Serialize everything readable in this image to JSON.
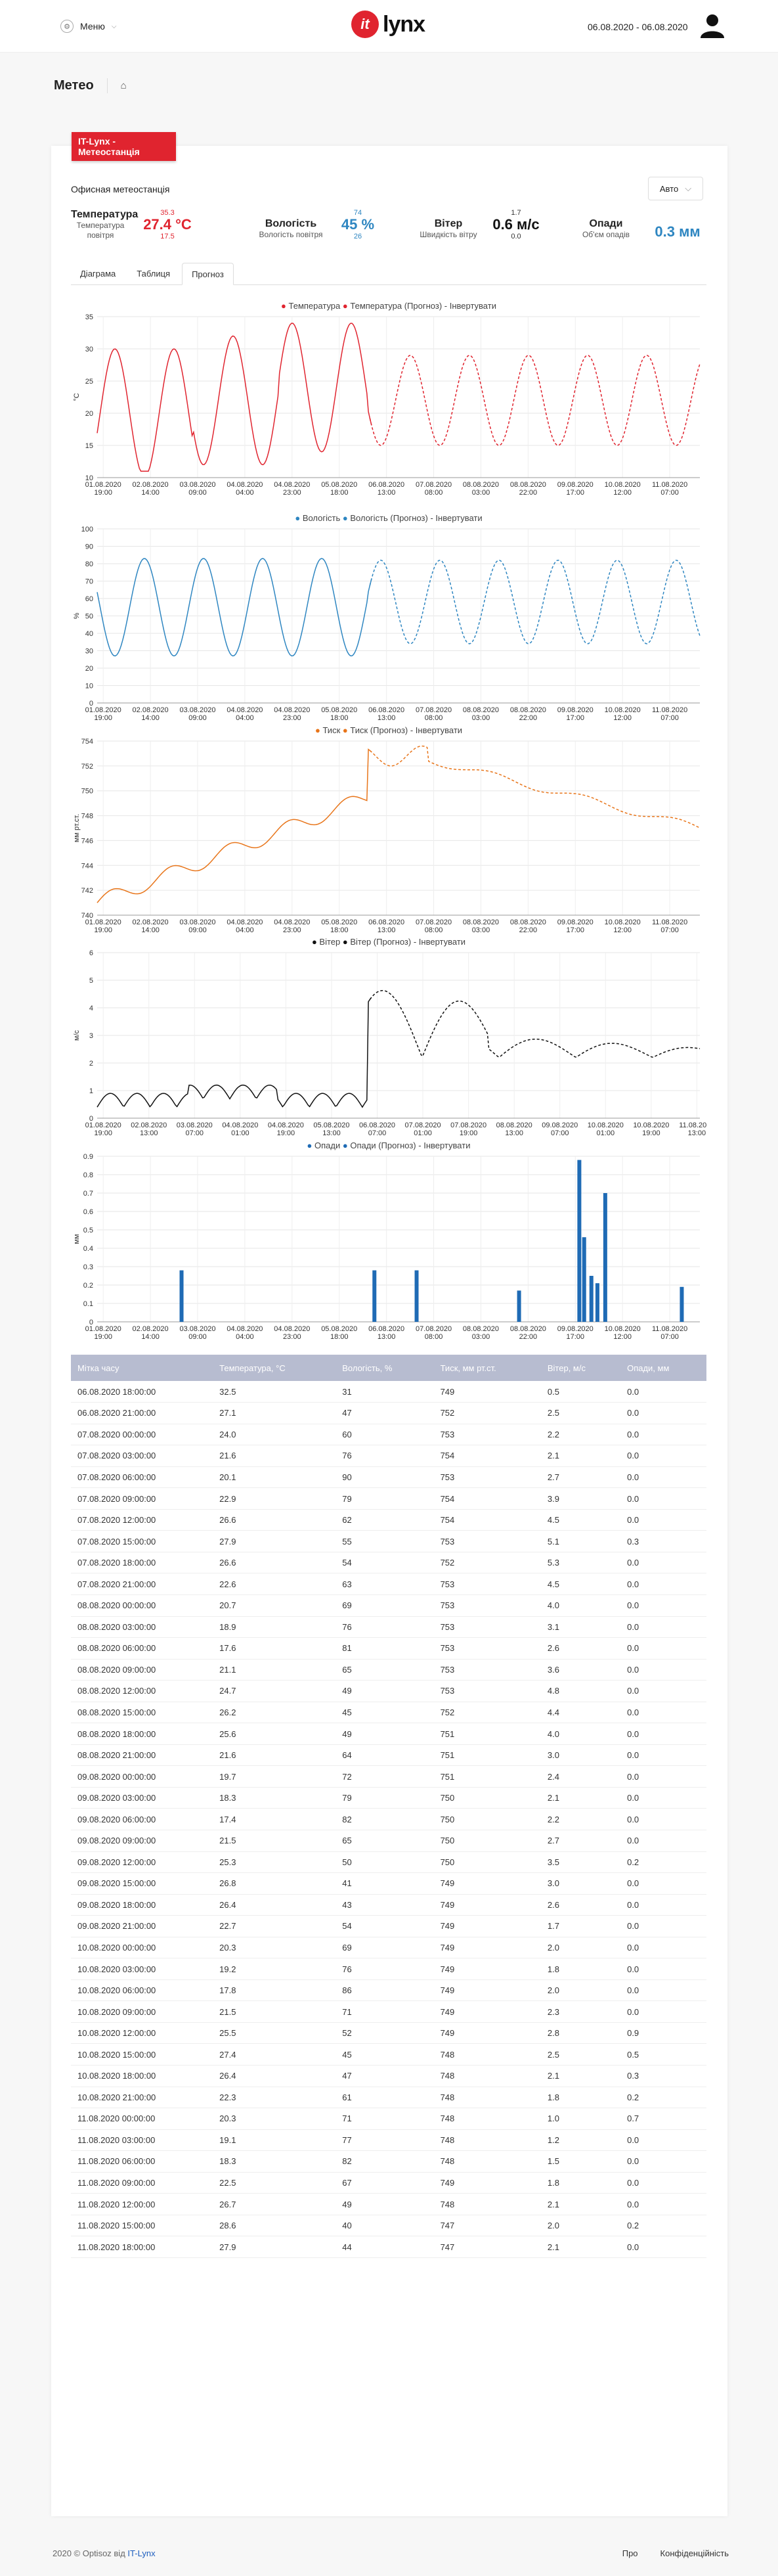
{
  "header": {
    "menu_label": "Меню",
    "logo_mark": "it",
    "logo_word": "lynx",
    "date_range": "06.08.2020 - 06.08.2020"
  },
  "breadcrumb": {
    "title": "Метео"
  },
  "station_tab": "IT-Lynx - Метеостанція",
  "station_name": "Офисная метеостанція",
  "mode_select": "Авто",
  "metrics": {
    "temp": {
      "title": "Температура",
      "subtitle": "Температура повітря",
      "max": "35.3",
      "value": "27.4 °C",
      "min": "17.5"
    },
    "humidity": {
      "title": "Вологість",
      "subtitle": "Вологість повітря",
      "max": "74",
      "value": "45 %",
      "min": "26"
    },
    "wind": {
      "title": "Вітер",
      "subtitle": "Швидкість вітру",
      "max": "1.7",
      "value": "0.6 м/с",
      "min": "0.0"
    },
    "rain": {
      "title": "Опади",
      "subtitle": "Об'єм опадів",
      "value": "0.3 мм"
    }
  },
  "tabs": [
    "Діаграма",
    "Таблиця",
    "Прогноз"
  ],
  "legends": {
    "temp": [
      "Температура",
      "Температура (Прогноз)",
      "Інвертувати"
    ],
    "hum": [
      "Вологість",
      "Вологість (Прогноз)",
      "Інвертувати"
    ],
    "press": [
      "Тиск",
      "Тиск (Прогноз)",
      "Інвертувати"
    ],
    "wind": [
      "Вітер",
      "Вітер (Прогноз)",
      "Інвертувати"
    ],
    "rain": [
      "Опади",
      "Опади (Прогноз)",
      "Інвертувати"
    ]
  },
  "chart_data": [
    {
      "type": "line",
      "ylabel": "°C",
      "ylim": [
        10,
        35
      ],
      "yticks": [
        10,
        15,
        20,
        25,
        30,
        35
      ],
      "colors": {
        "actual": "#e0242f",
        "forecast": "#e0242f"
      },
      "x_ticks": [
        [
          "01.08.2020",
          "19:00"
        ],
        [
          "02.08.2020",
          "14:00"
        ],
        [
          "03.08.2020",
          "09:00"
        ],
        [
          "04.08.2020",
          "04:00"
        ],
        [
          "04.08.2020",
          "23:00"
        ],
        [
          "05.08.2020",
          "18:00"
        ],
        [
          "06.08.2020",
          "13:00"
        ],
        [
          "07.08.2020",
          "08:00"
        ],
        [
          "08.08.2020",
          "03:00"
        ],
        [
          "08.08.2020",
          "22:00"
        ],
        [
          "09.08.2020",
          "17:00"
        ],
        [
          "10.08.2020",
          "12:00"
        ],
        [
          "11.08.2020",
          "07:00"
        ]
      ]
    },
    {
      "type": "line",
      "ylabel": "%",
      "ylim": [
        0,
        100
      ],
      "yticks": [
        0,
        10,
        20,
        30,
        40,
        50,
        60,
        70,
        80,
        90,
        100
      ],
      "colors": {
        "actual": "#2e86c1",
        "forecast": "#2e86c1"
      },
      "x_ticks": [
        [
          "01.08.2020",
          "19:00"
        ],
        [
          "02.08.2020",
          "14:00"
        ],
        [
          "03.08.2020",
          "09:00"
        ],
        [
          "04.08.2020",
          "04:00"
        ],
        [
          "04.08.2020",
          "23:00"
        ],
        [
          "05.08.2020",
          "18:00"
        ],
        [
          "06.08.2020",
          "13:00"
        ],
        [
          "07.08.2020",
          "08:00"
        ],
        [
          "08.08.2020",
          "03:00"
        ],
        [
          "08.08.2020",
          "22:00"
        ],
        [
          "09.08.2020",
          "17:00"
        ],
        [
          "10.08.2020",
          "12:00"
        ],
        [
          "11.08.2020",
          "07:00"
        ]
      ]
    },
    {
      "type": "line",
      "ylabel": "мм рт.ст.",
      "ylim": [
        740,
        754
      ],
      "yticks": [
        740,
        742,
        744,
        746,
        748,
        750,
        752,
        754
      ],
      "colors": {
        "actual": "#e8751a",
        "forecast": "#e8751a"
      },
      "x_ticks": [
        [
          "01.08.2020",
          "19:00"
        ],
        [
          "02.08.2020",
          "14:00"
        ],
        [
          "03.08.2020",
          "09:00"
        ],
        [
          "04.08.2020",
          "04:00"
        ],
        [
          "04.08.2020",
          "23:00"
        ],
        [
          "05.08.2020",
          "18:00"
        ],
        [
          "06.08.2020",
          "13:00"
        ],
        [
          "07.08.2020",
          "08:00"
        ],
        [
          "08.08.2020",
          "03:00"
        ],
        [
          "08.08.2020",
          "22:00"
        ],
        [
          "09.08.2020",
          "17:00"
        ],
        [
          "10.08.2020",
          "12:00"
        ],
        [
          "11.08.2020",
          "07:00"
        ]
      ]
    },
    {
      "type": "line",
      "ylabel": "м/с",
      "ylim": [
        0,
        6
      ],
      "yticks": [
        0,
        1,
        2,
        3,
        4,
        5,
        6
      ],
      "colors": {
        "actual": "#111111",
        "forecast": "#111111"
      },
      "x_ticks": [
        [
          "01.08.2020",
          "19:00"
        ],
        [
          "02.08.2020",
          "13:00"
        ],
        [
          "03.08.2020",
          "07:00"
        ],
        [
          "04.08.2020",
          "01:00"
        ],
        [
          "04.08.2020",
          "19:00"
        ],
        [
          "05.08.2020",
          "13:00"
        ],
        [
          "06.08.2020",
          "07:00"
        ],
        [
          "07.08.2020",
          "01:00"
        ],
        [
          "07.08.2020",
          "19:00"
        ],
        [
          "08.08.2020",
          "13:00"
        ],
        [
          "09.08.2020",
          "07:00"
        ],
        [
          "10.08.2020",
          "01:00"
        ],
        [
          "10.08.2020",
          "19:00"
        ],
        [
          "11.08.2020",
          "13:00"
        ]
      ]
    },
    {
      "type": "bar",
      "ylabel": "мм",
      "ylim": [
        0,
        0.9
      ],
      "yticks": [
        0,
        0.1,
        0.2,
        0.3,
        0.4,
        0.5,
        0.6,
        0.7,
        0.8,
        0.9
      ],
      "colors": {
        "actual": "#1f6bb5"
      },
      "x_ticks": [
        [
          "01.08.2020",
          "19:00"
        ],
        [
          "02.08.2020",
          "14:00"
        ],
        [
          "03.08.2020",
          "09:00"
        ],
        [
          "04.08.2020",
          "04:00"
        ],
        [
          "04.08.2020",
          "23:00"
        ],
        [
          "05.08.2020",
          "18:00"
        ],
        [
          "06.08.2020",
          "13:00"
        ],
        [
          "07.08.2020",
          "08:00"
        ],
        [
          "08.08.2020",
          "03:00"
        ],
        [
          "08.08.2020",
          "22:00"
        ],
        [
          "09.08.2020",
          "17:00"
        ],
        [
          "10.08.2020",
          "12:00"
        ],
        [
          "11.08.2020",
          "07:00"
        ]
      ],
      "bars": [
        [
          0.14,
          0.28
        ],
        [
          0.46,
          0.28
        ],
        [
          0.53,
          0.28
        ],
        [
          0.7,
          0.17
        ],
        [
          0.8,
          0.88
        ],
        [
          0.808,
          0.46
        ],
        [
          0.82,
          0.25
        ],
        [
          0.83,
          0.21
        ],
        [
          0.843,
          0.7
        ],
        [
          0.97,
          0.19
        ]
      ]
    }
  ],
  "table": {
    "headers": [
      "Мітка часу",
      "Температура, °C",
      "Вологість, %",
      "Тиск, мм рт.ст.",
      "Вітер, м/с",
      "Опади, мм"
    ],
    "rows": [
      [
        "06.08.2020 18:00:00",
        "32.5",
        "31",
        "749",
        "0.5",
        "0.0"
      ],
      [
        "06.08.2020 21:00:00",
        "27.1",
        "47",
        "752",
        "2.5",
        "0.0"
      ],
      [
        "07.08.2020 00:00:00",
        "24.0",
        "60",
        "753",
        "2.2",
        "0.0"
      ],
      [
        "07.08.2020 03:00:00",
        "21.6",
        "76",
        "754",
        "2.1",
        "0.0"
      ],
      [
        "07.08.2020 06:00:00",
        "20.1",
        "90",
        "753",
        "2.7",
        "0.0"
      ],
      [
        "07.08.2020 09:00:00",
        "22.9",
        "79",
        "754",
        "3.9",
        "0.0"
      ],
      [
        "07.08.2020 12:00:00",
        "26.6",
        "62",
        "754",
        "4.5",
        "0.0"
      ],
      [
        "07.08.2020 15:00:00",
        "27.9",
        "55",
        "753",
        "5.1",
        "0.3"
      ],
      [
        "07.08.2020 18:00:00",
        "26.6",
        "54",
        "752",
        "5.3",
        "0.0"
      ],
      [
        "07.08.2020 21:00:00",
        "22.6",
        "63",
        "753",
        "4.5",
        "0.0"
      ],
      [
        "08.08.2020 00:00:00",
        "20.7",
        "69",
        "753",
        "4.0",
        "0.0"
      ],
      [
        "08.08.2020 03:00:00",
        "18.9",
        "76",
        "753",
        "3.1",
        "0.0"
      ],
      [
        "08.08.2020 06:00:00",
        "17.6",
        "81",
        "753",
        "2.6",
        "0.0"
      ],
      [
        "08.08.2020 09:00:00",
        "21.1",
        "65",
        "753",
        "3.6",
        "0.0"
      ],
      [
        "08.08.2020 12:00:00",
        "24.7",
        "49",
        "753",
        "4.8",
        "0.0"
      ],
      [
        "08.08.2020 15:00:00",
        "26.2",
        "45",
        "752",
        "4.4",
        "0.0"
      ],
      [
        "08.08.2020 18:00:00",
        "25.6",
        "49",
        "751",
        "4.0",
        "0.0"
      ],
      [
        "08.08.2020 21:00:00",
        "21.6",
        "64",
        "751",
        "3.0",
        "0.0"
      ],
      [
        "09.08.2020 00:00:00",
        "19.7",
        "72",
        "751",
        "2.4",
        "0.0"
      ],
      [
        "09.08.2020 03:00:00",
        "18.3",
        "79",
        "750",
        "2.1",
        "0.0"
      ],
      [
        "09.08.2020 06:00:00",
        "17.4",
        "82",
        "750",
        "2.2",
        "0.0"
      ],
      [
        "09.08.2020 09:00:00",
        "21.5",
        "65",
        "750",
        "2.7",
        "0.0"
      ],
      [
        "09.08.2020 12:00:00",
        "25.3",
        "50",
        "750",
        "3.5",
        "0.2"
      ],
      [
        "09.08.2020 15:00:00",
        "26.8",
        "41",
        "749",
        "3.0",
        "0.0"
      ],
      [
        "09.08.2020 18:00:00",
        "26.4",
        "43",
        "749",
        "2.6",
        "0.0"
      ],
      [
        "09.08.2020 21:00:00",
        "22.7",
        "54",
        "749",
        "1.7",
        "0.0"
      ],
      [
        "10.08.2020 00:00:00",
        "20.3",
        "69",
        "749",
        "2.0",
        "0.0"
      ],
      [
        "10.08.2020 03:00:00",
        "19.2",
        "76",
        "749",
        "1.8",
        "0.0"
      ],
      [
        "10.08.2020 06:00:00",
        "17.8",
        "86",
        "749",
        "2.0",
        "0.0"
      ],
      [
        "10.08.2020 09:00:00",
        "21.5",
        "71",
        "749",
        "2.3",
        "0.0"
      ],
      [
        "10.08.2020 12:00:00",
        "25.5",
        "52",
        "749",
        "2.8",
        "0.9"
      ],
      [
        "10.08.2020 15:00:00",
        "27.4",
        "45",
        "748",
        "2.5",
        "0.5"
      ],
      [
        "10.08.2020 18:00:00",
        "26.4",
        "47",
        "748",
        "2.1",
        "0.3"
      ],
      [
        "10.08.2020 21:00:00",
        "22.3",
        "61",
        "748",
        "1.8",
        "0.2"
      ],
      [
        "11.08.2020 00:00:00",
        "20.3",
        "71",
        "748",
        "1.0",
        "0.7"
      ],
      [
        "11.08.2020 03:00:00",
        "19.1",
        "77",
        "748",
        "1.2",
        "0.0"
      ],
      [
        "11.08.2020 06:00:00",
        "18.3",
        "82",
        "748",
        "1.5",
        "0.0"
      ],
      [
        "11.08.2020 09:00:00",
        "22.5",
        "67",
        "749",
        "1.8",
        "0.0"
      ],
      [
        "11.08.2020 12:00:00",
        "26.7",
        "49",
        "748",
        "2.1",
        "0.0"
      ],
      [
        "11.08.2020 15:00:00",
        "28.6",
        "40",
        "747",
        "2.0",
        "0.2"
      ],
      [
        "11.08.2020 18:00:00",
        "27.9",
        "44",
        "747",
        "2.1",
        "0.0"
      ]
    ]
  },
  "footer": {
    "copy": "2020 © Optisoz від",
    "brand": "IT-Lynx",
    "links": [
      "Про",
      "Конфіденційність"
    ]
  }
}
